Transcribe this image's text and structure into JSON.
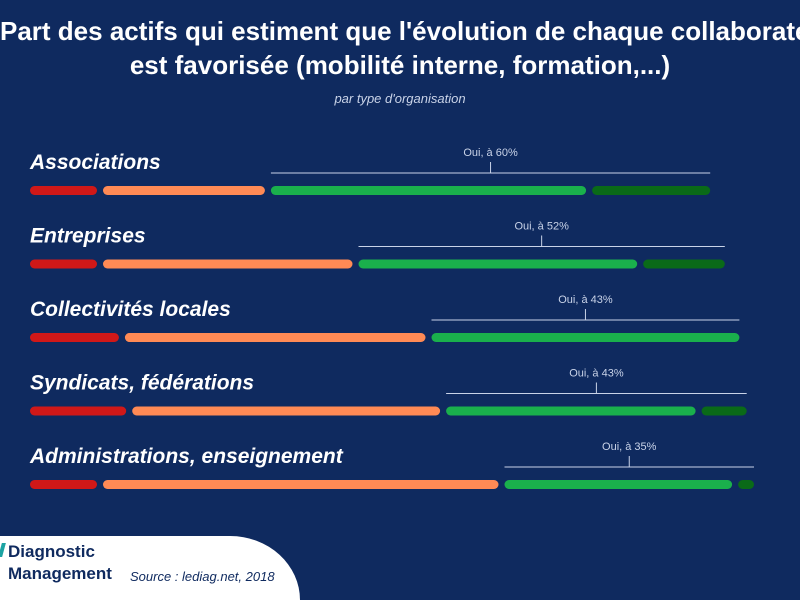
{
  "title_line1": "Part des actifs qui estiment que l'évolution de chaque collaborateur",
  "title_line2": "est favorisée (mobilité interne, formation,...)",
  "subtitle": "par type d'organisation",
  "brand": {
    "line1": "Diagnostic",
    "line2": "Management"
  },
  "source": "Source : lediag.net, 2018",
  "colors": {
    "background": "#0f2a5f",
    "segments": [
      "#d01818",
      "#ff8a55",
      "#1ab04c",
      "#0a6a18"
    ],
    "axis": "#c9d3e8",
    "label": "#ffffff"
  },
  "chart_data": {
    "type": "bar",
    "orientation": "horizontal",
    "stacked": true,
    "categories": [
      "Associations",
      "Entreprises",
      "Collectivités locales",
      "Syndicats, fédérations",
      "Administrations, enseignement"
    ],
    "series": [
      {
        "values": [
          10,
          10,
          13,
          14,
          10
        ]
      },
      {
        "values": [
          23,
          35,
          42,
          43,
          55
        ]
      },
      {
        "values": [
          44,
          39,
          43,
          35,
          32
        ]
      },
      {
        "values": [
          17,
          12,
          0,
          7,
          3
        ]
      }
    ],
    "annotations": [
      "Oui, à 60%",
      "Oui, à 52%",
      "Oui, à 43%",
      "Oui, à 43%",
      "Oui, à 35%"
    ],
    "xlim": [
      0,
      100
    ]
  }
}
